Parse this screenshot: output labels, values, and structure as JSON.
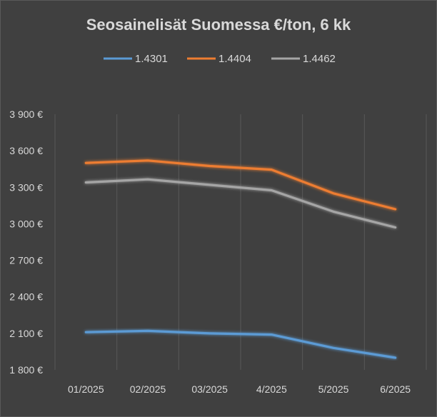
{
  "chart_data": {
    "type": "line",
    "title": "Seosainelisät Suomessa €/ton, 6 kk",
    "categories": [
      "01/2025",
      "02/2025",
      "03/2025",
      "4/2025",
      "5/2025",
      "6/2025"
    ],
    "ylim": [
      1800,
      3900
    ],
    "yticks": [
      1800,
      2100,
      2400,
      2700,
      3000,
      3300,
      3600,
      3900
    ],
    "ytick_labels": [
      "1 800 €",
      "2 100 €",
      "2 400 €",
      "2 700 €",
      "3 000 €",
      "3 300 €",
      "3 600 €",
      "3 900 €"
    ],
    "grid": "vertical",
    "legend_position": "top",
    "series": [
      {
        "name": "1.4301",
        "color": "#5b9bd5",
        "values": [
          2110,
          2120,
          2100,
          2090,
          1980,
          1900
        ]
      },
      {
        "name": "1.4404",
        "color": "#ed7d31",
        "values": [
          3500,
          3520,
          3475,
          3445,
          3250,
          3120
        ]
      },
      {
        "name": "1.4462",
        "color": "#a5a5a5",
        "values": [
          3340,
          3365,
          3320,
          3275,
          3100,
          2970
        ]
      }
    ]
  }
}
